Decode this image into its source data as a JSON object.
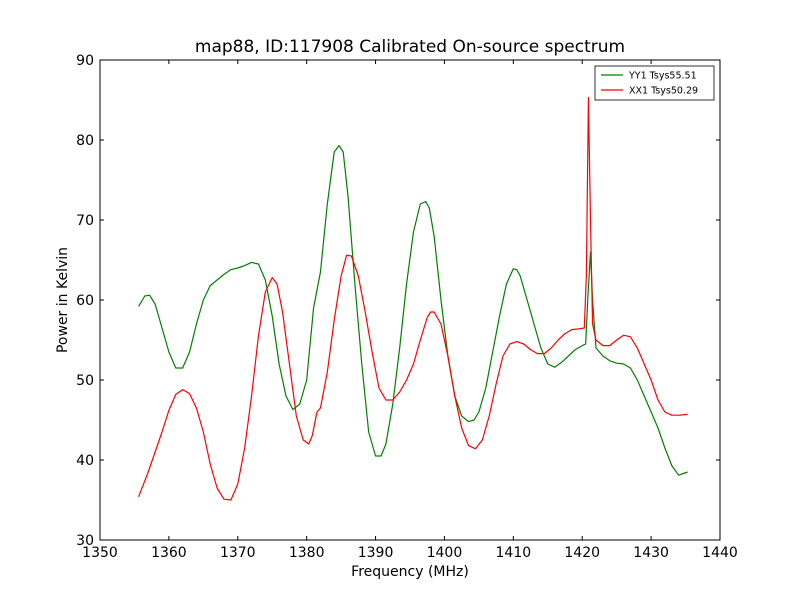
{
  "figure": {
    "title": "map88, ID:117908 Calibrated On-source spectrum"
  },
  "chart_data": {
    "type": "line",
    "title": "map88, ID:117908 Calibrated On-source spectrum",
    "xlabel": "Frequency (MHz)",
    "ylabel": "Power in Kelvin",
    "xlim": [
      1350,
      1440
    ],
    "ylim": [
      30,
      90
    ],
    "xticks": [
      1350,
      1360,
      1370,
      1380,
      1390,
      1400,
      1410,
      1420,
      1430,
      1440
    ],
    "yticks": [
      30,
      40,
      50,
      60,
      70,
      80,
      90
    ],
    "grid": false,
    "legend_position": "top-right",
    "series": [
      {
        "name": "YY1 Tsys55.51",
        "color": "#008000",
        "x": [
          1355.6,
          1356.5,
          1357.2,
          1358.0,
          1359.0,
          1360.0,
          1361.0,
          1362.0,
          1363.0,
          1364.0,
          1365.0,
          1366.0,
          1367.0,
          1368.0,
          1369.0,
          1370.0,
          1371.0,
          1372.0,
          1373.0,
          1374.0,
          1375.0,
          1376.0,
          1377.0,
          1378.0,
          1379.0,
          1380.0,
          1381.0,
          1382.0,
          1383.0,
          1384.0,
          1384.7,
          1385.3,
          1386.0,
          1387.0,
          1388.0,
          1389.0,
          1390.0,
          1390.8,
          1391.5,
          1392.5,
          1393.5,
          1394.5,
          1395.5,
          1396.5,
          1397.3,
          1397.8,
          1398.5,
          1399.5,
          1400.5,
          1401.5,
          1402.5,
          1403.5,
          1404.3,
          1405.0,
          1406.0,
          1407.0,
          1408.0,
          1409.0,
          1410.0,
          1410.5,
          1411.0,
          1412.0,
          1413.0,
          1414.0,
          1415.0,
          1416.0,
          1417.0,
          1418.0,
          1419.0,
          1420.0,
          1420.5,
          1420.8,
          1421.2,
          1421.5,
          1422.0,
          1423.0,
          1424.0,
          1425.0,
          1426.0,
          1427.0,
          1428.0,
          1429.0,
          1430.0,
          1431.0,
          1432.0,
          1433.0,
          1434.0,
          1435.3
        ],
        "y": [
          59.2,
          60.5,
          60.6,
          59.5,
          56.5,
          53.5,
          51.5,
          51.5,
          53.5,
          57.0,
          60.0,
          61.8,
          62.5,
          63.2,
          63.8,
          64.0,
          64.3,
          64.7,
          64.5,
          62.5,
          58.0,
          52.0,
          48.0,
          46.3,
          47.0,
          50.0,
          59.0,
          63.5,
          72.0,
          78.5,
          79.3,
          78.5,
          73.0,
          62.0,
          52.0,
          43.5,
          40.5,
          40.5,
          42.0,
          47.0,
          54.0,
          62.0,
          68.5,
          72.0,
          72.3,
          71.5,
          68.0,
          60.0,
          53.0,
          48.0,
          45.5,
          44.8,
          45.0,
          46.0,
          49.0,
          53.5,
          58.0,
          62.0,
          63.9,
          63.8,
          63.0,
          60.0,
          57.0,
          54.0,
          52.0,
          51.6,
          52.2,
          53.0,
          53.8,
          54.3,
          54.5,
          60.0,
          66.0,
          60.0,
          54.0,
          53.0,
          52.4,
          52.1,
          52.0,
          51.5,
          50.0,
          48.0,
          46.0,
          44.0,
          41.5,
          39.3,
          38.1,
          38.5
        ]
      },
      {
        "name": "XX1 Tsys50.29",
        "color": "#ff0000",
        "x": [
          1355.6,
          1357.0,
          1358.0,
          1359.0,
          1360.0,
          1361.0,
          1362.0,
          1363.0,
          1364.0,
          1365.0,
          1366.0,
          1367.0,
          1368.0,
          1369.0,
          1370.0,
          1371.0,
          1372.0,
          1373.0,
          1374.0,
          1375.0,
          1375.7,
          1376.5,
          1377.5,
          1378.5,
          1379.5,
          1380.3,
          1380.8,
          1381.5,
          1382.0,
          1383.0,
          1384.0,
          1385.0,
          1385.8,
          1386.5,
          1387.5,
          1388.5,
          1389.5,
          1390.5,
          1391.5,
          1392.5,
          1393.5,
          1394.5,
          1395.5,
          1396.5,
          1397.5,
          1398.0,
          1398.5,
          1399.5,
          1400.5,
          1401.5,
          1402.5,
          1403.5,
          1404.5,
          1405.5,
          1406.5,
          1407.5,
          1408.5,
          1409.5,
          1410.5,
          1411.5,
          1412.5,
          1413.5,
          1414.5,
          1415.5,
          1416.5,
          1417.5,
          1418.5,
          1419.5,
          1420.3,
          1420.6,
          1420.9,
          1421.2,
          1421.5,
          1422.0,
          1423.0,
          1424.0,
          1425.0,
          1426.0,
          1427.0,
          1428.0,
          1429.0,
          1430.0,
          1431.0,
          1432.0,
          1433.0,
          1434.0,
          1435.3
        ],
        "y": [
          35.4,
          38.5,
          41.0,
          43.5,
          46.2,
          48.2,
          48.8,
          48.3,
          46.5,
          43.5,
          39.5,
          36.5,
          35.1,
          35.0,
          37.0,
          41.5,
          48.0,
          55.5,
          61.0,
          62.8,
          62.0,
          58.5,
          52.0,
          45.5,
          42.5,
          42.0,
          43.0,
          46.0,
          46.5,
          51.0,
          57.5,
          63.0,
          65.6,
          65.5,
          63.0,
          58.5,
          53.5,
          49.0,
          47.5,
          47.5,
          48.5,
          50.0,
          52.0,
          55.0,
          57.8,
          58.5,
          58.5,
          57.0,
          53.0,
          48.0,
          44.0,
          41.8,
          41.4,
          42.5,
          45.5,
          49.5,
          53.0,
          54.5,
          54.8,
          54.5,
          53.8,
          53.3,
          53.3,
          54.0,
          55.0,
          55.8,
          56.3,
          56.4,
          56.5,
          63.0,
          85.3,
          70.0,
          57.0,
          55.0,
          54.3,
          54.3,
          55.0,
          55.6,
          55.4,
          54.0,
          52.0,
          50.0,
          47.5,
          46.0,
          45.6,
          45.6,
          45.7
        ]
      }
    ]
  }
}
